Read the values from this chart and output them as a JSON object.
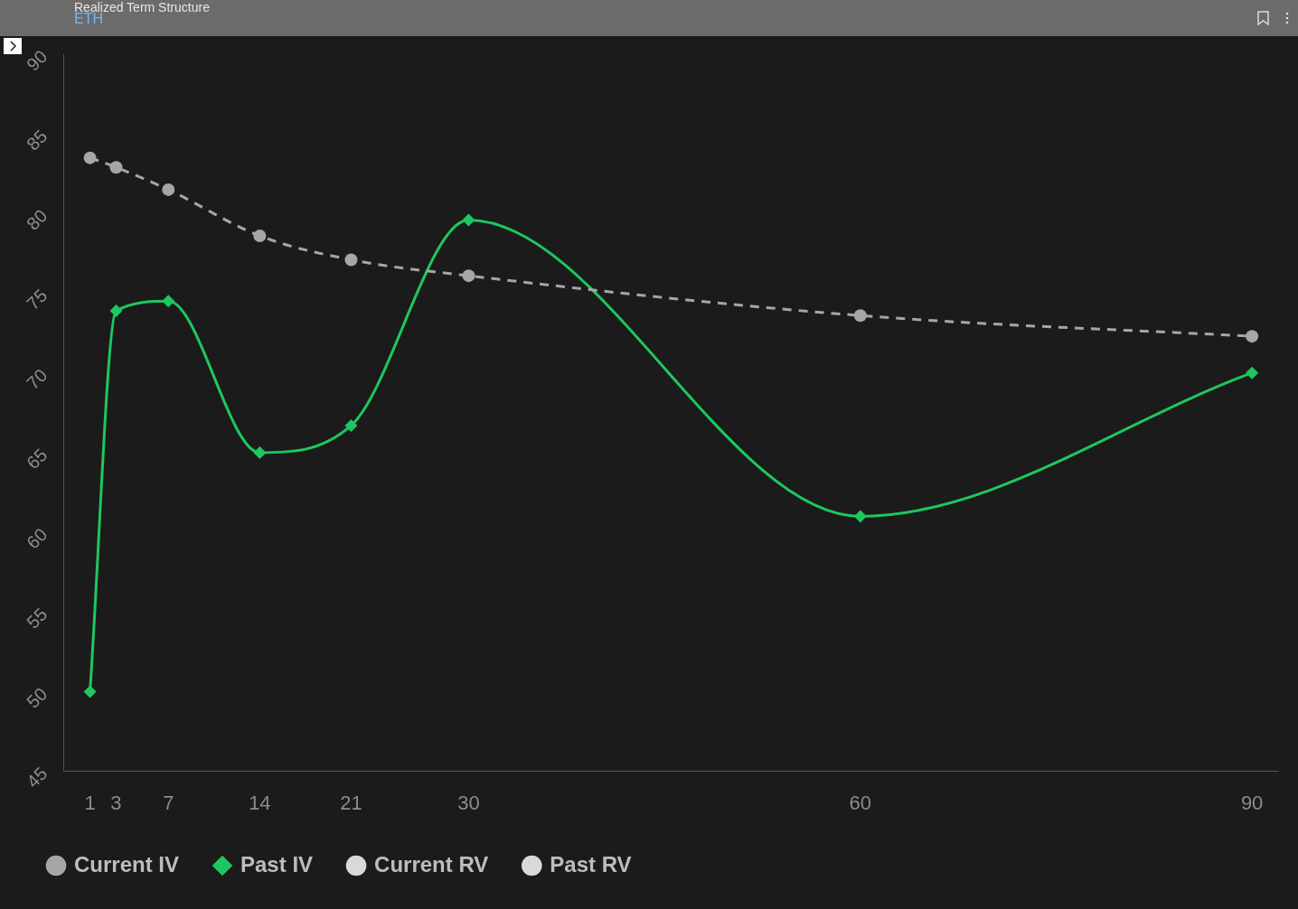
{
  "chart_data": {
    "type": "line",
    "title": "Realized Term Structure",
    "subtitle": "ETH",
    "x": [
      1,
      3,
      7,
      14,
      21,
      30,
      60,
      90
    ],
    "xlim": [
      -1,
      92
    ],
    "xticks": [
      1,
      3,
      7,
      14,
      21,
      30,
      60,
      90
    ],
    "ylim": [
      45,
      90
    ],
    "yticks": [
      45,
      50,
      55,
      60,
      65,
      70,
      75,
      80,
      85,
      90
    ],
    "grid": false,
    "legend": "bottom left",
    "series": [
      {
        "name": "Current IV",
        "color": "#a6a6a6",
        "line_style": "dashed",
        "marker": "circle",
        "values": [
          83.5,
          82.9,
          81.5,
          78.6,
          77.1,
          76.1,
          73.6,
          72.3
        ]
      },
      {
        "name": "Past IV",
        "color": "#1ec760",
        "line_style": "solid",
        "marker": "diamond",
        "values": [
          50,
          73.9,
          74.5,
          65,
          66.7,
          79.6,
          61,
          70
        ]
      },
      {
        "name": "Current RV",
        "color": "#d9d9d9",
        "marker": "circle",
        "values": [
          null,
          null,
          null,
          null,
          null,
          null,
          null,
          null
        ]
      },
      {
        "name": "Past RV",
        "color": "#d9d9d9",
        "marker": "circle",
        "values": [
          null,
          null,
          null,
          null,
          null,
          null,
          null,
          null
        ]
      }
    ]
  }
}
